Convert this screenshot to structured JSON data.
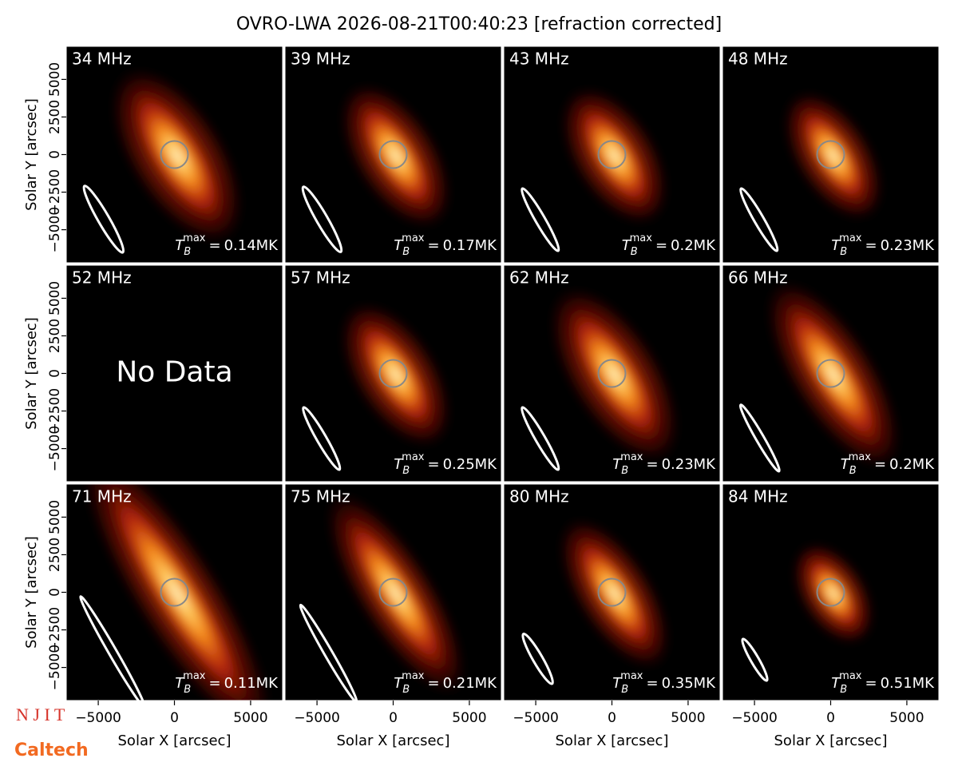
{
  "title": "OVRO-LWA 2026-08-21T00:40:23 [refraction corrected]",
  "axes": {
    "xlabel": "Solar X [arcsec]",
    "ylabel": "Solar Y [arcsec]",
    "xlim": [
      -7100,
      7100
    ],
    "ylim": [
      -7200,
      7200
    ],
    "xticks": [
      {
        "value": -5000,
        "label": "−5000"
      },
      0,
      5000
    ],
    "yticks": [
      5000,
      2500,
      0,
      {
        "value": -2500,
        "label": "−2500"
      },
      {
        "value": -5000,
        "label": "−5000"
      }
    ]
  },
  "tmax_symbol": {
    "base": "T",
    "sub": "B",
    "sup": "max",
    "sep": "="
  },
  "chart_data": [
    {
      "type": "image",
      "title": "34 MHz",
      "tmax": "0.14MK"
    },
    {
      "type": "image",
      "title": "39 MHz",
      "tmax": "0.17MK"
    },
    {
      "type": "image",
      "title": "43 MHz",
      "tmax": "0.2MK"
    },
    {
      "type": "image",
      "title": "48 MHz",
      "tmax": "0.23MK"
    },
    {
      "type": "image",
      "title": "52 MHz",
      "annotation": "No Data"
    },
    {
      "type": "image",
      "title": "57 MHz",
      "tmax": "0.25MK"
    },
    {
      "type": "image",
      "title": "62 MHz",
      "tmax": "0.23MK"
    },
    {
      "type": "image",
      "title": "66 MHz",
      "tmax": "0.2MK"
    },
    {
      "type": "image",
      "title": "71 MHz",
      "tmax": "0.11MK"
    },
    {
      "type": "image",
      "title": "75 MHz",
      "tmax": "0.21MK"
    },
    {
      "type": "image",
      "title": "80 MHz",
      "tmax": "0.35MK"
    },
    {
      "type": "image",
      "title": "84 MHz",
      "tmax": "0.51MK"
    }
  ],
  "logos": {
    "njit": "N J I T",
    "caltech": "Caltech"
  }
}
